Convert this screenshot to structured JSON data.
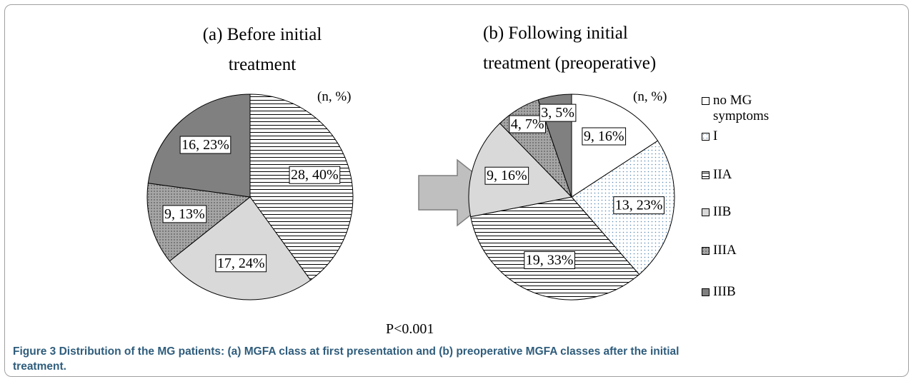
{
  "chart_data": [
    {
      "type": "pie",
      "title": "(a) Before initial treatment",
      "note": "(n, %)",
      "categories": [
        "IIA",
        "IIB",
        "IIIA",
        "IIIB"
      ],
      "values": [
        28,
        17,
        9,
        16
      ],
      "value_labels": [
        "28, 40%",
        "17, 24%",
        "9, 13%",
        "16, 23%"
      ],
      "patterns": [
        "hlines",
        "lightgray",
        "graydots",
        "darkgray"
      ]
    },
    {
      "type": "pie",
      "title": "(b) Following initial treatment (preoperative)",
      "note": "(n, %)",
      "categories": [
        "no MG symptoms",
        "I",
        "IIA",
        "IIB",
        "IIIA",
        "IIIB"
      ],
      "values": [
        9,
        13,
        19,
        9,
        4,
        3
      ],
      "value_labels": [
        "9, 16%",
        "13, 23%",
        "19, 33%",
        "9, 16%",
        "4, 7%",
        "3, 5%"
      ],
      "patterns": [
        "white",
        "bluedots",
        "hlines",
        "lightgray",
        "graydots",
        "darkgray"
      ],
      "legend": true
    }
  ],
  "annotation": "P<0.001",
  "caption": "Figure 3 Distribution of the MG patients: (a) MGFA class at first presentation and (b) preoperative MGFA classes after the initial treatment."
}
